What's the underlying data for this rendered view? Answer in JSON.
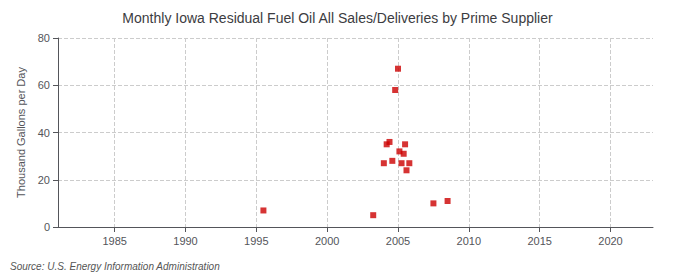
{
  "chart_data": {
    "type": "scatter",
    "title": "Monthly Iowa Residual Fuel Oil All Sales/Deliveries by Prime Supplier",
    "ylabel": "Thousand Gallons per Day",
    "annotations": [
      "Source: U.S. Energy Information Administration"
    ],
    "x": [
      1995.5,
      2003.25,
      2004.0,
      2004.2,
      2004.4,
      2004.6,
      2004.8,
      2005.0,
      2005.1,
      2005.25,
      2005.4,
      2005.5,
      2005.6,
      2005.8,
      2007.5,
      2008.5
    ],
    "values": [
      7,
      5,
      27,
      35,
      36,
      28,
      58,
      67,
      32,
      27,
      31,
      35,
      24,
      27,
      10,
      11
    ],
    "color": "#cc0000",
    "marker": "square",
    "xlim": [
      1981,
      2023
    ],
    "xticks": [
      1985,
      1990,
      1995,
      2000,
      2005,
      2010,
      2015,
      2020
    ],
    "ylim": [
      0,
      80
    ],
    "yticks": [
      0,
      20,
      40,
      60,
      80
    ],
    "grid": true
  }
}
